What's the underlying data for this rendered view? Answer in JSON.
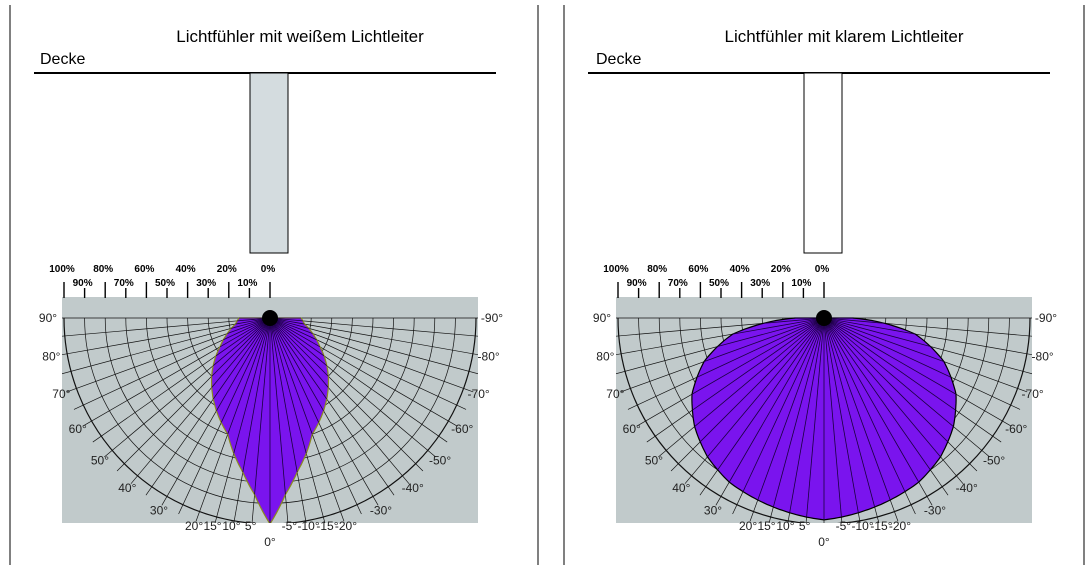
{
  "panels": [
    {
      "title": "Lichtfühler mit weißem Lichtleiter",
      "ceiling_label": "Decke",
      "light_guide": "white",
      "light_guide_fill": "#d4dcdf",
      "pct_top": [
        "100%",
        "80%",
        "60%",
        "40%",
        "20%",
        "0%"
      ],
      "pct_bottom": [
        "90%",
        "70%",
        "50%",
        "30%",
        "10%"
      ],
      "angle_labels_left": [
        "90°",
        "80°",
        "70°",
        "60°",
        "50°",
        "40°",
        "30°",
        "20°",
        "15°",
        "10°",
        "5°"
      ],
      "angle_labels_right": [
        "-90°",
        "-80°",
        "-70°",
        "-60°",
        "-50°",
        "-40°",
        "-30°",
        "-20°",
        "-15°",
        "-10°",
        "-5°"
      ],
      "angle_zero": "0°",
      "chart_data": {
        "type": "polar",
        "angles_deg": [
          -90,
          -80,
          -70,
          -60,
          -50,
          -40,
          -30,
          -20,
          -15,
          -10,
          -5,
          0,
          5,
          10,
          15,
          20,
          30,
          40,
          50,
          60,
          70,
          80,
          90
        ],
        "relative_sensitivity_pct": [
          15,
          17,
          22,
          28,
          36,
          44,
          52,
          60,
          68,
          76,
          86,
          100,
          86,
          76,
          68,
          60,
          52,
          44,
          36,
          28,
          22,
          17,
          15
        ]
      }
    },
    {
      "title": "Lichtfühler mit klarem Lichtleiter",
      "ceiling_label": "Decke",
      "light_guide": "clear",
      "light_guide_fill": "#ffffff",
      "pct_top": [
        "100%",
        "80%",
        "60%",
        "40%",
        "20%",
        "0%"
      ],
      "pct_bottom": [
        "90%",
        "70%",
        "50%",
        "30%",
        "10%"
      ],
      "angle_labels_left": [
        "90°",
        "80°",
        "70°",
        "60°",
        "50°",
        "40°",
        "30°",
        "20°",
        "15°",
        "10°",
        "5°"
      ],
      "angle_labels_right": [
        "-90°",
        "-80°",
        "-70°",
        "-60°",
        "-50°",
        "-40°",
        "-30°",
        "-20°",
        "-15°",
        "-10°",
        "-5°"
      ],
      "angle_zero": "0°",
      "chart_data": {
        "type": "polar",
        "angles_deg": [
          -90,
          -80,
          -70,
          -60,
          -50,
          -40,
          -30,
          -20,
          -15,
          -10,
          -5,
          0,
          5,
          10,
          15,
          20,
          30,
          40,
          50,
          60,
          70,
          80,
          90
        ],
        "relative_sensitivity_pct": [
          14,
          45,
          62,
          74,
          82,
          88,
          92,
          94,
          95,
          96,
          97,
          98,
          97,
          96,
          95,
          94,
          92,
          88,
          82,
          74,
          62,
          45,
          14
        ]
      }
    }
  ],
  "colors": {
    "plot_background": "#c1cacb",
    "grid_line": "#111111",
    "lobe_fill": "#7a14ee",
    "lobe_edge": "#000000",
    "lobe_rim": "#8a8a20"
  }
}
